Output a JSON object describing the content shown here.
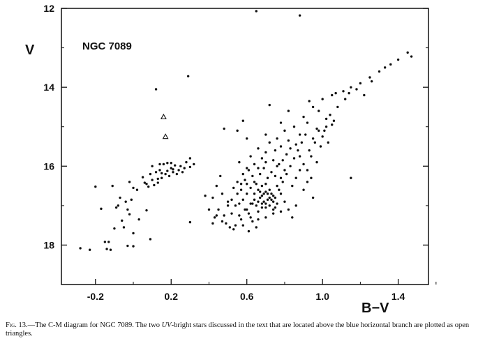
{
  "chart_data": {
    "type": "scatter",
    "title": "",
    "annotation": "NGC 7089",
    "xlabel": "B−V",
    "ylabel": "V",
    "xlim": [
      -0.38,
      1.56
    ],
    "ylim": [
      19.0,
      12.0
    ],
    "y_inverted": true,
    "grid": false,
    "x_ticks": [
      -0.2,
      0.2,
      0.6,
      1.0,
      1.4
    ],
    "x_tick_labels": [
      "-0.2",
      "0.2",
      "0.6",
      "1.0",
      "1.4"
    ],
    "y_ticks": [
      12,
      14,
      16,
      18
    ],
    "y_tick_labels": [
      "12",
      "14",
      "16",
      "18"
    ],
    "series": [
      {
        "marker": "filled-circle",
        "points": [
          [
            -0.28,
            18.08
          ],
          [
            -0.23,
            18.12
          ],
          [
            -0.2,
            16.52
          ],
          [
            -0.17,
            17.08
          ],
          [
            -0.15,
            17.92
          ],
          [
            -0.14,
            18.1
          ],
          [
            -0.13,
            17.92
          ],
          [
            -0.12,
            18.12
          ],
          [
            -0.11,
            16.5
          ],
          [
            -0.1,
            17.58
          ],
          [
            -0.09,
            17.05
          ],
          [
            -0.08,
            17.0
          ],
          [
            -0.07,
            16.8
          ],
          [
            -0.06,
            17.38
          ],
          [
            -0.05,
            17.55
          ],
          [
            -0.04,
            16.9
          ],
          [
            -0.03,
            17.1
          ],
          [
            -0.02,
            16.4
          ],
          [
            -0.02,
            17.22
          ],
          [
            -0.01,
            16.85
          ],
          [
            0.0,
            16.55
          ],
          [
            0.0,
            17.7
          ],
          [
            0.0,
            18.03
          ],
          [
            0.02,
            16.6
          ],
          [
            0.03,
            17.35
          ],
          [
            0.05,
            16.28
          ],
          [
            0.06,
            16.42
          ],
          [
            0.07,
            17.12
          ],
          [
            0.08,
            16.52
          ],
          [
            0.09,
            16.2
          ],
          [
            0.1,
            16.35
          ],
          [
            0.11,
            16.48
          ],
          [
            0.12,
            16.15
          ],
          [
            0.13,
            16.42
          ],
          [
            0.14,
            16.1
          ],
          [
            0.15,
            16.3
          ],
          [
            0.16,
            15.95
          ],
          [
            0.17,
            16.2
          ],
          [
            0.18,
            15.92
          ],
          [
            0.19,
            16.25
          ],
          [
            0.2,
            16.05
          ],
          [
            0.21,
            16.15
          ],
          [
            0.22,
            15.98
          ],
          [
            0.24,
            16.1
          ],
          [
            0.25,
            16.0
          ],
          [
            0.27,
            16.05
          ],
          [
            0.28,
            15.9
          ],
          [
            0.3,
            16.02
          ],
          [
            0.32,
            15.95
          ],
          [
            0.14,
            15.95
          ],
          [
            0.18,
            16.12
          ],
          [
            0.23,
            16.2
          ],
          [
            0.26,
            16.15
          ],
          [
            0.12,
            14.05
          ],
          [
            0.29,
            13.72
          ],
          [
            0.3,
            15.8
          ],
          [
            0.3,
            17.42
          ],
          [
            0.09,
            17.85
          ],
          [
            -0.03,
            18.02
          ],
          [
            0.21,
            16.08
          ],
          [
            0.1,
            16.0
          ],
          [
            0.2,
            15.92
          ],
          [
            0.15,
            16.18
          ],
          [
            0.07,
            16.45
          ],
          [
            0.13,
            16.32
          ],
          [
            0.65,
            12.07
          ],
          [
            0.88,
            12.18
          ],
          [
            1.45,
            13.12
          ],
          [
            1.47,
            13.22
          ],
          [
            1.4,
            13.3
          ],
          [
            1.33,
            13.5
          ],
          [
            1.36,
            13.42
          ],
          [
            1.3,
            13.6
          ],
          [
            1.25,
            13.75
          ],
          [
            1.2,
            13.9
          ],
          [
            1.15,
            14.0
          ],
          [
            1.11,
            14.1
          ],
          [
            1.07,
            14.15
          ],
          [
            1.05,
            14.2
          ],
          [
            1.0,
            14.3
          ],
          [
            0.95,
            14.5
          ],
          [
            0.93,
            14.35
          ],
          [
            0.98,
            14.6
          ],
          [
            0.9,
            14.75
          ],
          [
            0.92,
            14.9
          ],
          [
            0.97,
            15.05
          ],
          [
            1.02,
            14.8
          ],
          [
            1.05,
            14.95
          ],
          [
            0.85,
            15.0
          ],
          [
            0.88,
            15.2
          ],
          [
            0.82,
            15.35
          ],
          [
            0.8,
            15.1
          ],
          [
            0.78,
            15.5
          ],
          [
            0.75,
            15.6
          ],
          [
            0.72,
            15.4
          ],
          [
            0.7,
            15.65
          ],
          [
            0.68,
            15.8
          ],
          [
            0.66,
            15.55
          ],
          [
            0.64,
            15.95
          ],
          [
            0.62,
            15.75
          ],
          [
            0.6,
            16.05
          ],
          [
            0.58,
            16.2
          ],
          [
            0.56,
            15.9
          ],
          [
            0.55,
            16.4
          ],
          [
            0.53,
            16.55
          ],
          [
            0.52,
            16.85
          ],
          [
            0.5,
            17.0
          ],
          [
            0.48,
            17.25
          ],
          [
            0.45,
            17.1
          ],
          [
            0.43,
            17.3
          ],
          [
            0.47,
            16.7
          ],
          [
            0.44,
            16.5
          ],
          [
            0.42,
            16.8
          ],
          [
            0.49,
            17.45
          ],
          [
            0.51,
            17.55
          ],
          [
            0.54,
            17.5
          ],
          [
            0.57,
            17.35
          ],
          [
            0.59,
            17.1
          ],
          [
            0.61,
            17.2
          ],
          [
            0.63,
            16.95
          ],
          [
            0.65,
            17.0
          ],
          [
            0.67,
            16.8
          ],
          [
            0.69,
            16.9
          ],
          [
            0.71,
            16.7
          ],
          [
            0.73,
            16.85
          ],
          [
            0.75,
            17.05
          ],
          [
            0.77,
            16.6
          ],
          [
            0.79,
            16.4
          ],
          [
            0.81,
            16.2
          ],
          [
            0.83,
            16.0
          ],
          [
            0.85,
            15.8
          ],
          [
            0.87,
            15.6
          ],
          [
            0.89,
            15.4
          ],
          [
            0.91,
            15.2
          ],
          [
            0.93,
            15.6
          ],
          [
            0.95,
            15.3
          ],
          [
            0.97,
            15.9
          ],
          [
            0.99,
            15.5
          ],
          [
            1.01,
            15.1
          ],
          [
            1.03,
            15.4
          ],
          [
            0.66,
            16.9
          ],
          [
            0.68,
            16.75
          ],
          [
            0.7,
            16.95
          ],
          [
            0.72,
            16.8
          ],
          [
            0.74,
            16.9
          ],
          [
            0.64,
            16.85
          ],
          [
            0.62,
            16.95
          ],
          [
            0.6,
            17.1
          ],
          [
            0.66,
            17.15
          ],
          [
            0.68,
            17.05
          ],
          [
            0.7,
            16.65
          ],
          [
            0.72,
            16.6
          ],
          [
            0.74,
            16.75
          ],
          [
            0.76,
            16.5
          ],
          [
            0.78,
            16.7
          ],
          [
            0.8,
            16.9
          ],
          [
            0.82,
            17.1
          ],
          [
            0.84,
            17.3
          ],
          [
            0.63,
            17.4
          ],
          [
            0.65,
            17.55
          ],
          [
            0.61,
            17.65
          ],
          [
            0.58,
            17.5
          ],
          [
            0.56,
            17.25
          ],
          [
            0.54,
            17.0
          ],
          [
            0.57,
            16.6
          ],
          [
            0.59,
            16.35
          ],
          [
            0.61,
            16.1
          ],
          [
            0.63,
            16.25
          ],
          [
            0.65,
            16.45
          ],
          [
            0.67,
            16.2
          ],
          [
            0.69,
            16.05
          ],
          [
            0.71,
            16.3
          ],
          [
            0.73,
            16.15
          ],
          [
            0.75,
            16.25
          ],
          [
            0.77,
            15.95
          ],
          [
            0.79,
            15.85
          ],
          [
            0.81,
            15.7
          ],
          [
            0.83,
            15.55
          ],
          [
            0.86,
            15.45
          ],
          [
            0.88,
            15.75
          ],
          [
            0.9,
            15.95
          ],
          [
            0.92,
            16.1
          ],
          [
            0.94,
            15.75
          ],
          [
            0.96,
            15.4
          ],
          [
            0.98,
            15.1
          ],
          [
            1.0,
            15.25
          ],
          [
            1.02,
            15.0
          ],
          [
            1.04,
            14.7
          ],
          [
            1.06,
            14.85
          ],
          [
            1.08,
            14.5
          ],
          [
            1.12,
            14.3
          ],
          [
            1.14,
            14.15
          ],
          [
            1.18,
            14.05
          ],
          [
            1.22,
            14.2
          ],
          [
            1.26,
            13.85
          ],
          [
            0.58,
            14.85
          ],
          [
            0.72,
            14.45
          ],
          [
            0.78,
            14.9
          ],
          [
            0.82,
            14.6
          ],
          [
            1.15,
            16.3
          ],
          [
            0.95,
            16.8
          ],
          [
            0.46,
            16.25
          ],
          [
            0.53,
            17.6
          ],
          [
            0.4,
            17.1
          ],
          [
            0.38,
            16.75
          ],
          [
            0.48,
            15.05
          ],
          [
            0.55,
            15.1
          ],
          [
            0.6,
            15.3
          ],
          [
            0.7,
            15.2
          ],
          [
            0.76,
            15.3
          ],
          [
            0.68,
            16.5
          ],
          [
            0.7,
            16.45
          ],
          [
            0.66,
            16.6
          ],
          [
            0.64,
            16.7
          ],
          [
            0.62,
            16.55
          ],
          [
            0.6,
            16.7
          ],
          [
            0.58,
            16.85
          ],
          [
            0.56,
            16.95
          ],
          [
            0.62,
            17.3
          ],
          [
            0.66,
            17.35
          ],
          [
            0.7,
            17.3
          ],
          [
            0.74,
            17.2
          ],
          [
            0.78,
            17.15
          ],
          [
            0.86,
            17.0
          ],
          [
            0.9,
            16.6
          ],
          [
            0.92,
            16.4
          ],
          [
            0.94,
            16.3
          ],
          [
            0.84,
            16.5
          ],
          [
            0.86,
            16.3
          ],
          [
            0.88,
            16.1
          ],
          [
            0.78,
            16.3
          ],
          [
            0.8,
            16.1
          ],
          [
            0.76,
            16.0
          ],
          [
            0.74,
            15.85
          ],
          [
            0.7,
            15.9
          ],
          [
            0.66,
            16.05
          ],
          [
            0.64,
            16.4
          ],
          [
            0.6,
            16.45
          ],
          [
            0.55,
            16.7
          ],
          [
            0.52,
            17.2
          ],
          [
            0.47,
            17.4
          ],
          [
            0.44,
            17.25
          ],
          [
            0.42,
            17.45
          ],
          [
            0.5,
            16.9
          ],
          [
            0.57,
            16.45
          ],
          [
            0.68,
            16.95
          ],
          [
            0.7,
            17.05
          ],
          [
            0.72,
            17.0
          ],
          [
            0.74,
            17.1
          ],
          [
            0.76,
            16.95
          ],
          [
            0.71,
            16.85
          ],
          [
            0.69,
            16.7
          ],
          [
            0.67,
            16.65
          ],
          [
            0.73,
            16.7
          ],
          [
            0.75,
            16.8
          ]
        ]
      },
      {
        "marker": "open-triangle",
        "points": [
          [
            0.16,
            14.75
          ],
          [
            0.17,
            15.25
          ]
        ]
      }
    ],
    "caption": {
      "fig": "Fig. 13.",
      "text_before": "—The C-M diagram for NGC 7089. The two ",
      "uv": "UV",
      "text_after": "-bright stars discussed in the text that are located above the blue horizontal branch are plotted as open triangles."
    }
  }
}
